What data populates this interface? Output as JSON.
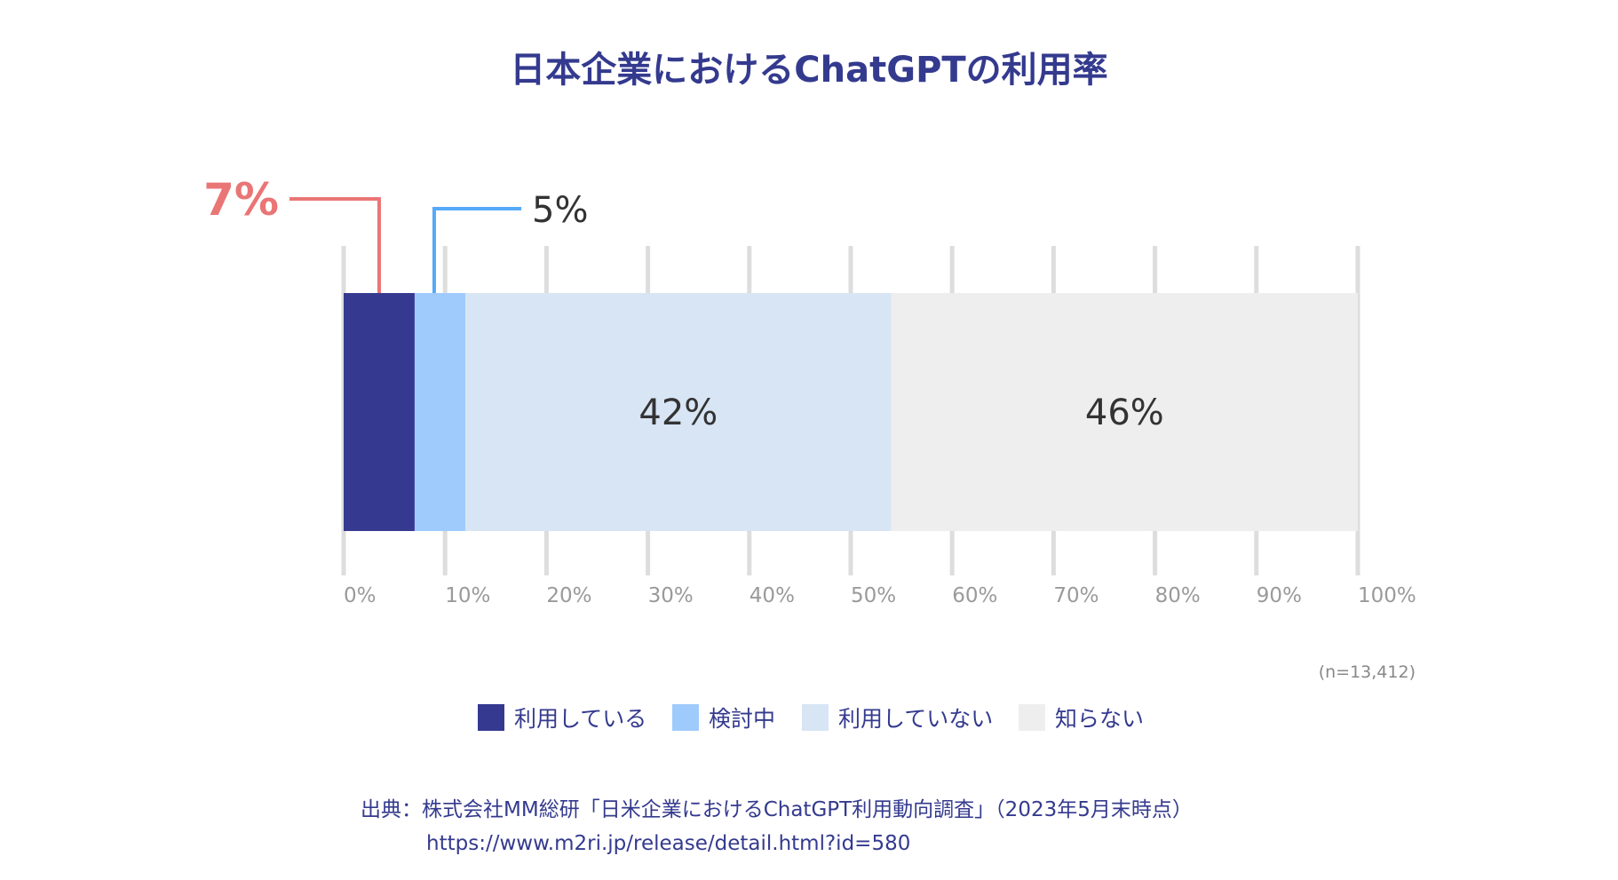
{
  "chart_data": {
    "type": "bar",
    "stacked": true,
    "orientation": "horizontal",
    "title": "日本企業におけるChatGPTの利用率",
    "xlim": [
      0,
      100
    ],
    "x_ticks": [
      "0%",
      "10%",
      "20%",
      "30%",
      "40%",
      "50%",
      "60%",
      "70%",
      "80%",
      "90%",
      "100%"
    ],
    "grid": true,
    "series": [
      {
        "name": "利用している",
        "value": 7,
        "label": "7%",
        "color": "#363990",
        "label_color": "#ea7575"
      },
      {
        "name": "検討中",
        "value": 5,
        "label": "5%",
        "color": "#9fcbfc",
        "label_color": "#333333"
      },
      {
        "name": "利用していない",
        "value": 42,
        "label": "42%",
        "color": "#d8e5f4",
        "label_color": "#333333"
      },
      {
        "name": "知らない",
        "value": 46,
        "label": "46%",
        "color": "#eeeeee",
        "label_color": "#333333"
      }
    ],
    "sample_size": "(n=13,412)",
    "legend_position": "bottom"
  },
  "colors": {
    "title": "#343a8e",
    "grid": "#dddddd",
    "tick": "#9a9a9a",
    "callout_used": "#ea7575",
    "callout_considering": "#55a9f8"
  },
  "source": {
    "line1": "出典：株式会社MM総研「日米企業におけるChatGPT利用動向調査」（2023年5月末時点）",
    "line2": "https://www.m2ri.jp/release/detail.html?id=580"
  }
}
